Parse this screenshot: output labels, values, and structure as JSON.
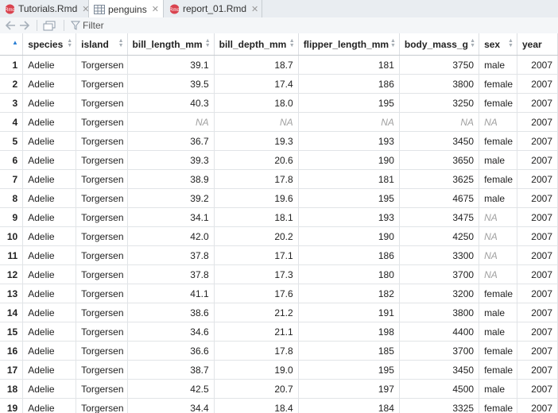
{
  "tabs": [
    {
      "label": "Tutorials.Rmd",
      "icon": "rmd-file-icon",
      "active": false
    },
    {
      "label": "penguins",
      "icon": "data-table-icon",
      "active": true
    },
    {
      "label": "report_01.Rmd",
      "icon": "rmd-file-icon",
      "active": false
    }
  ],
  "toolbar": {
    "filter_label": "Filter"
  },
  "columns": [
    "species",
    "island",
    "bill_length_mm",
    "bill_depth_mm",
    "flipper_length_mm",
    "body_mass_g",
    "sex",
    "year"
  ],
  "rows": [
    [
      "1",
      "Adelie",
      "Torgersen",
      "39.1",
      "18.7",
      "181",
      "3750",
      "male",
      "2007"
    ],
    [
      "2",
      "Adelie",
      "Torgersen",
      "39.5",
      "17.4",
      "186",
      "3800",
      "female",
      "2007"
    ],
    [
      "3",
      "Adelie",
      "Torgersen",
      "40.3",
      "18.0",
      "195",
      "3250",
      "female",
      "2007"
    ],
    [
      "4",
      "Adelie",
      "Torgersen",
      "NA",
      "NA",
      "NA",
      "NA",
      "NA",
      "2007"
    ],
    [
      "5",
      "Adelie",
      "Torgersen",
      "36.7",
      "19.3",
      "193",
      "3450",
      "female",
      "2007"
    ],
    [
      "6",
      "Adelie",
      "Torgersen",
      "39.3",
      "20.6",
      "190",
      "3650",
      "male",
      "2007"
    ],
    [
      "7",
      "Adelie",
      "Torgersen",
      "38.9",
      "17.8",
      "181",
      "3625",
      "female",
      "2007"
    ],
    [
      "8",
      "Adelie",
      "Torgersen",
      "39.2",
      "19.6",
      "195",
      "4675",
      "male",
      "2007"
    ],
    [
      "9",
      "Adelie",
      "Torgersen",
      "34.1",
      "18.1",
      "193",
      "3475",
      "NA",
      "2007"
    ],
    [
      "10",
      "Adelie",
      "Torgersen",
      "42.0",
      "20.2",
      "190",
      "4250",
      "NA",
      "2007"
    ],
    [
      "11",
      "Adelie",
      "Torgersen",
      "37.8",
      "17.1",
      "186",
      "3300",
      "NA",
      "2007"
    ],
    [
      "12",
      "Adelie",
      "Torgersen",
      "37.8",
      "17.3",
      "180",
      "3700",
      "NA",
      "2007"
    ],
    [
      "13",
      "Adelie",
      "Torgersen",
      "41.1",
      "17.6",
      "182",
      "3200",
      "female",
      "2007"
    ],
    [
      "14",
      "Adelie",
      "Torgersen",
      "38.6",
      "21.2",
      "191",
      "3800",
      "male",
      "2007"
    ],
    [
      "15",
      "Adelie",
      "Torgersen",
      "34.6",
      "21.1",
      "198",
      "4400",
      "male",
      "2007"
    ],
    [
      "16",
      "Adelie",
      "Torgersen",
      "36.6",
      "17.8",
      "185",
      "3700",
      "female",
      "2007"
    ],
    [
      "17",
      "Adelie",
      "Torgersen",
      "38.7",
      "19.0",
      "195",
      "3450",
      "female",
      "2007"
    ],
    [
      "18",
      "Adelie",
      "Torgersen",
      "42.5",
      "20.7",
      "197",
      "4500",
      "male",
      "2007"
    ],
    [
      "19",
      "Adelie",
      "Torgersen",
      "34.4",
      "18.4",
      "184",
      "3325",
      "female",
      "2007"
    ]
  ]
}
